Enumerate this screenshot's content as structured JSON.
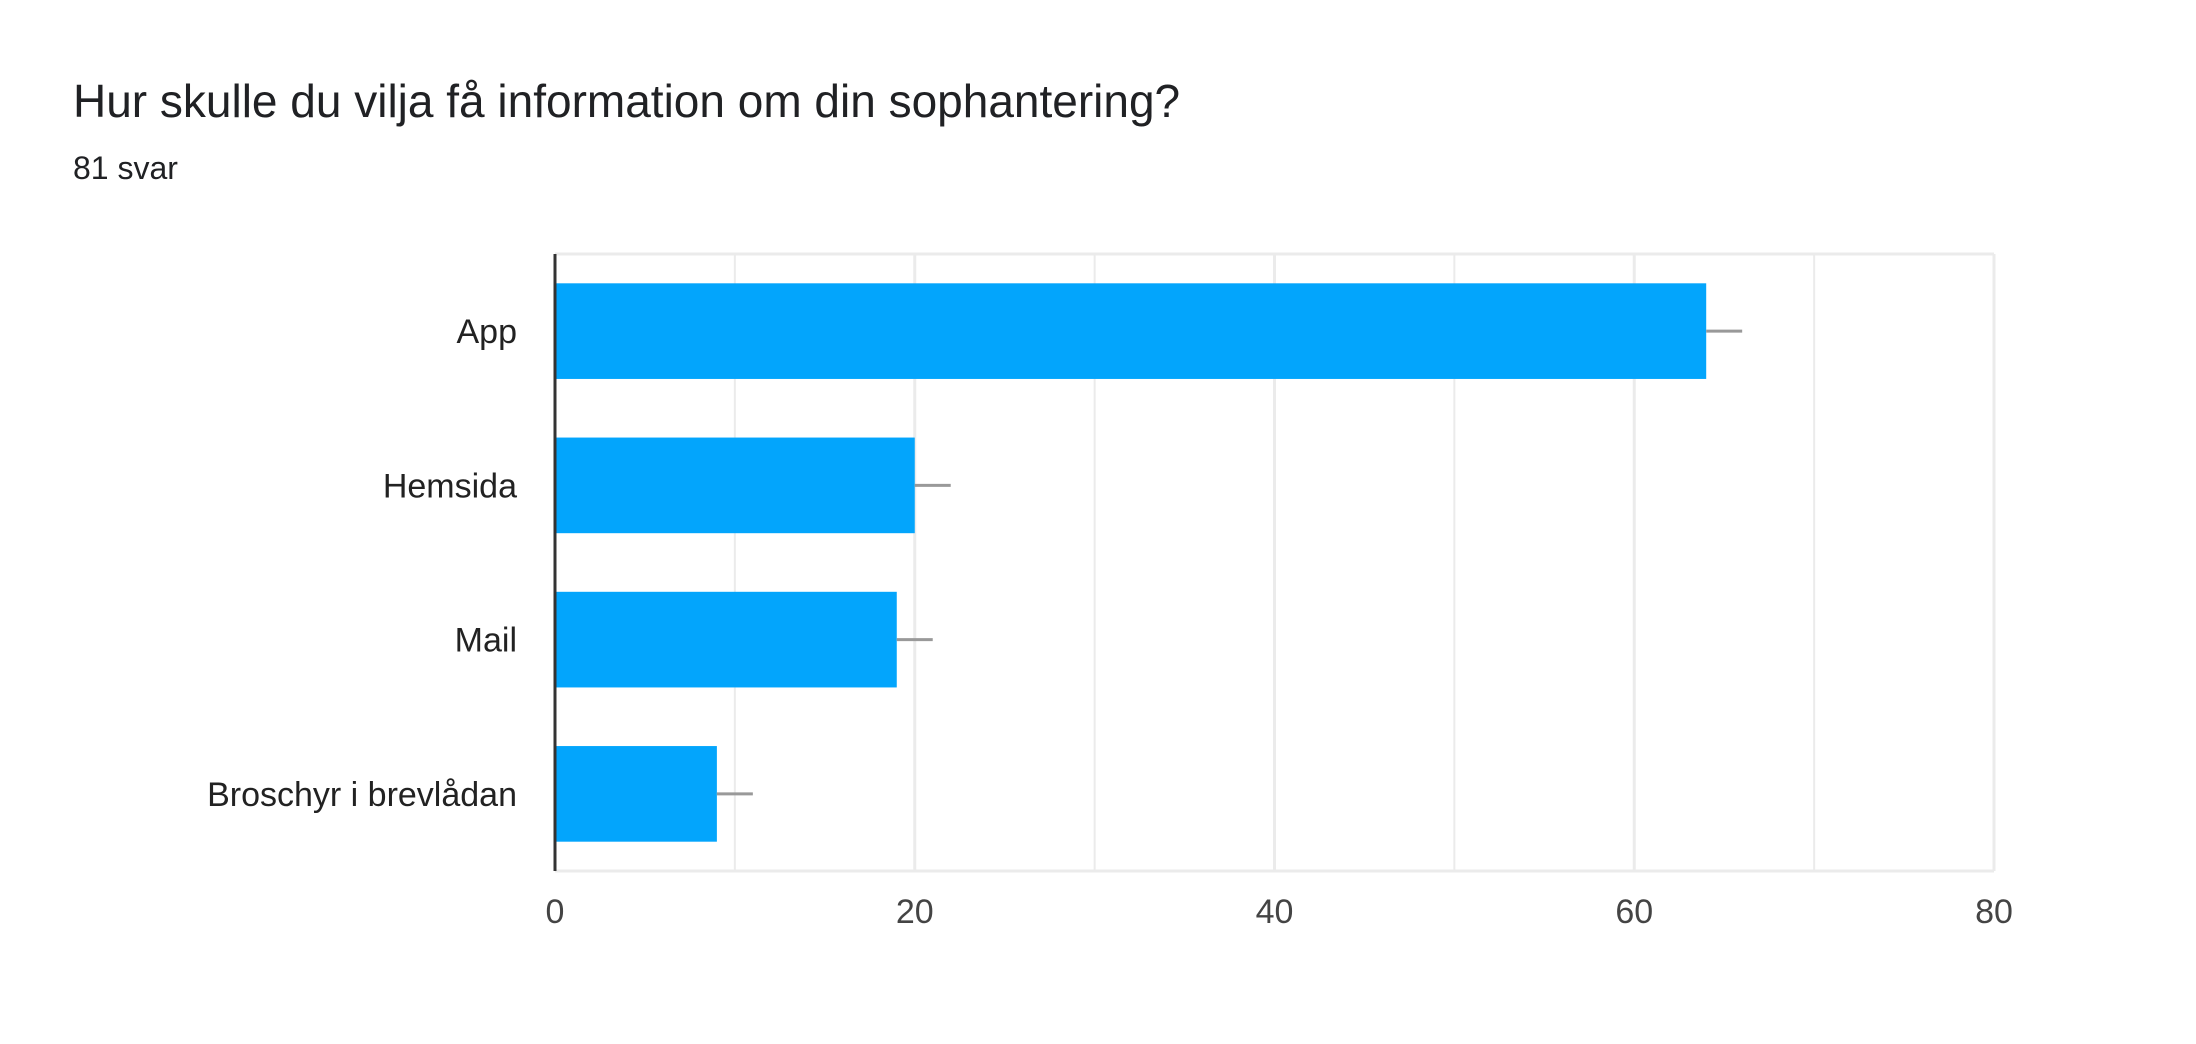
{
  "header": {
    "question": "Hur skulle du vilja få information om din sophantering?",
    "responses": "81 svar"
  },
  "colors": {
    "bar": "#03a5fc",
    "grid": "#ebebeb",
    "axis": "#333333",
    "error_bar": "#999999"
  },
  "chart_data": {
    "type": "bar",
    "orientation": "horizontal",
    "categories": [
      "App",
      "Hemsida",
      "Mail",
      "Broschyr i brevlådan"
    ],
    "values": [
      64,
      20,
      19,
      9
    ],
    "error_plus": [
      2,
      2,
      2,
      2
    ],
    "xlim": [
      0,
      80
    ],
    "xticks": [
      0,
      20,
      40,
      60,
      80
    ],
    "minor_gridlines": [
      10,
      30,
      50,
      70
    ],
    "grid": true,
    "legend": "none"
  }
}
